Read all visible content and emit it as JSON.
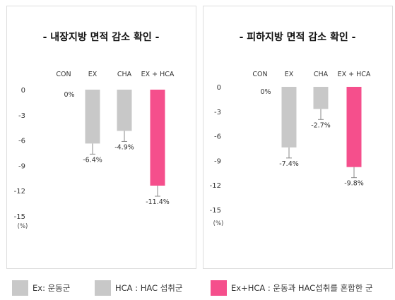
{
  "chart_data": [
    {
      "type": "bar",
      "title": "- 내장지방 면적 감소 확인 -",
      "categories": [
        "CON",
        "EX",
        "CHA",
        "EX + HCA"
      ],
      "values": [
        0,
        -6.4,
        -4.9,
        -11.4
      ],
      "value_labels": [
        "0%",
        "-6.4%",
        "-4.9%",
        "-11.4%"
      ],
      "yticks": [
        0,
        -3,
        -6,
        -9,
        -12,
        -15
      ],
      "ylim": [
        -15,
        0
      ],
      "ylabel": "(%)",
      "grid": false
    },
    {
      "type": "bar",
      "title": "- 피하지방 면적 감소 확인 -",
      "categories": [
        "CON",
        "EX",
        "CHA",
        "EX + HCA"
      ],
      "values": [
        0,
        -7.4,
        -2.7,
        -9.8
      ],
      "value_labels": [
        "0%",
        "-7.4%",
        "-2.7%",
        "-9.8%"
      ],
      "yticks": [
        0,
        -3,
        -6,
        -9,
        -12,
        -15
      ],
      "ylim": [
        -15,
        0
      ],
      "ylabel": "(%)",
      "grid": false
    }
  ],
  "colors": {
    "gray": "#c8c8c8",
    "pink": "#f54f8c",
    "errorbar": "#888888"
  },
  "bar_colors": [
    "#c8c8c8",
    "#c8c8c8",
    "#c8c8c8",
    "#f54f8c"
  ],
  "legend": [
    {
      "label": "Ex: 운동군",
      "color": "#c8c8c8"
    },
    {
      "label": "HCA : HAC 섭취군",
      "color": "#c8c8c8"
    },
    {
      "label": "Ex+HCA : 운동과 HAC섭취를 혼합한 군",
      "color": "#f54f8c"
    }
  ]
}
